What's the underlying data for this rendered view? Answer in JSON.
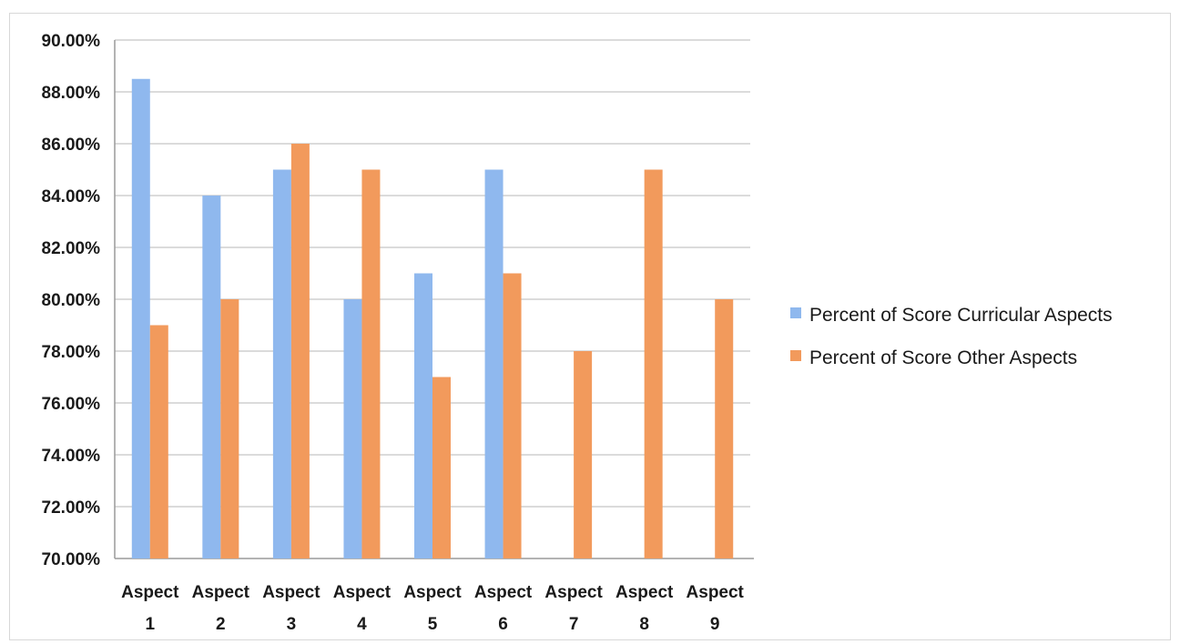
{
  "chart_data": {
    "type": "bar",
    "categories": [
      [
        "Aspect",
        "1"
      ],
      [
        "Aspect",
        "2"
      ],
      [
        "Aspect",
        "3"
      ],
      [
        "Aspect",
        "4"
      ],
      [
        "Aspect",
        "5"
      ],
      [
        "Aspect",
        "6"
      ],
      [
        "Aspect",
        "7"
      ],
      [
        "Aspect",
        "8"
      ],
      [
        "Aspect",
        "9"
      ]
    ],
    "series": [
      {
        "name": "Percent of Score Curricular Aspects",
        "color": "#8fb8ee",
        "values": [
          88.5,
          84,
          85,
          80,
          81,
          85,
          null,
          null,
          null
        ]
      },
      {
        "name": "Percent of Score Other Aspects",
        "color": "#f29a5c",
        "values": [
          79,
          80,
          86,
          85,
          77,
          81,
          78,
          85,
          80
        ]
      }
    ],
    "y_ticks": [
      "90.00%",
      "88.00%",
      "86.00%",
      "84.00%",
      "82.00%",
      "80.00%",
      "78.00%",
      "76.00%",
      "74.00%",
      "72.00%",
      "70.00%"
    ],
    "ylim": [
      70,
      90
    ],
    "grid": true,
    "legend_position": "right"
  }
}
